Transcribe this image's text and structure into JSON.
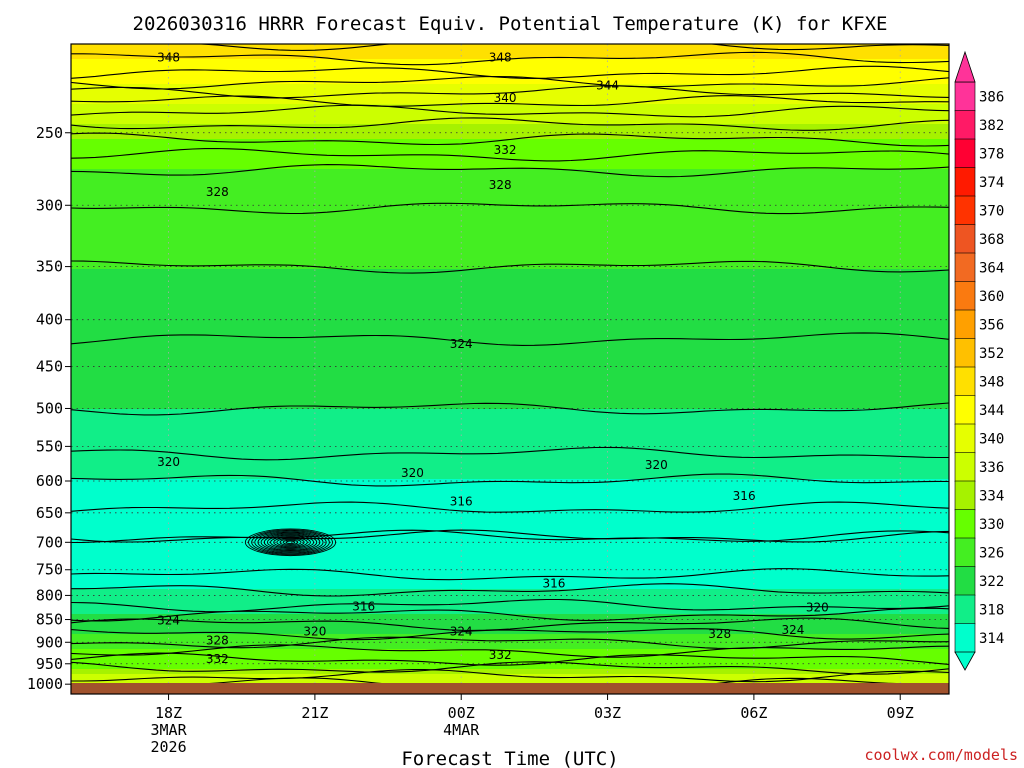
{
  "chart_data": {
    "type": "heatmap",
    "title": "2026030316 HRRR Forecast Equiv. Potential Temperature (K) for KFXE",
    "xlabel": "Forecast Time (UTC)",
    "ylabel": "",
    "x_ticks": [
      {
        "hour": 2,
        "lines": [
          "18Z",
          "3MAR",
          "2026"
        ]
      },
      {
        "hour": 5,
        "lines": [
          "21Z"
        ]
      },
      {
        "hour": 8,
        "lines": [
          "00Z",
          "4MAR"
        ]
      },
      {
        "hour": 11,
        "lines": [
          "03Z"
        ]
      },
      {
        "hour": 14,
        "lines": [
          "06Z"
        ]
      },
      {
        "hour": 17,
        "lines": [
          "09Z"
        ]
      }
    ],
    "xlim_hours": [
      0,
      18
    ],
    "y_scale": "log",
    "y_ticks": [
      250,
      300,
      350,
      400,
      450,
      500,
      550,
      600,
      650,
      700,
      750,
      800,
      850,
      900,
      950,
      1000
    ],
    "ylim_hPa": [
      200,
      1025
    ],
    "colorbar": {
      "levels": [
        386,
        382,
        378,
        374,
        370,
        368,
        364,
        360,
        356,
        352,
        348,
        344,
        340,
        336,
        334,
        330,
        326,
        322,
        318,
        314
      ],
      "colors": [
        "#ff3399",
        "#ff1a66",
        "#ff0033",
        "#ff1a00",
        "#ff3300",
        "#ee5522",
        "#f26a22",
        "#fa7a10",
        "#ffa000",
        "#ffc000",
        "#ffe000",
        "#ffff00",
        "#e6ff00",
        "#ccff00",
        "#a6f200",
        "#66ff00",
        "#44ee22",
        "#22dd44",
        "#11ee88",
        "#00ffcc"
      ]
    },
    "profiles": [
      {
        "p": 200,
        "theta": 350
      },
      {
        "p": 215,
        "theta": 346
      },
      {
        "p": 240,
        "theta": 337
      },
      {
        "p": 280,
        "theta": 329
      },
      {
        "p": 350,
        "theta": 326
      },
      {
        "p": 420,
        "theta": 324
      },
      {
        "p": 500,
        "theta": 322
      },
      {
        "p": 560,
        "theta": 320
      },
      {
        "p": 620,
        "theta": 317
      },
      {
        "p": 690,
        "theta": 314
      },
      {
        "p": 760,
        "theta": 316
      },
      {
        "p": 820,
        "theta": 320
      },
      {
        "p": 880,
        "theta": 326
      },
      {
        "p": 940,
        "theta": 332
      },
      {
        "p": 1000,
        "theta": 338
      }
    ],
    "contour_labels": [
      {
        "hour": 2.0,
        "p": 207,
        "text": "348"
      },
      {
        "hour": 8.8,
        "p": 207,
        "text": "348"
      },
      {
        "hour": 11.0,
        "p": 222,
        "text": "344"
      },
      {
        "hour": 8.9,
        "p": 229,
        "text": "340"
      },
      {
        "hour": 8.9,
        "p": 261,
        "text": "332"
      },
      {
        "hour": 8.8,
        "p": 285,
        "text": "328"
      },
      {
        "hour": 3.0,
        "p": 290,
        "text": "328"
      },
      {
        "hour": 8.0,
        "p": 425,
        "text": "324"
      },
      {
        "hour": 2.0,
        "p": 572,
        "text": "320"
      },
      {
        "hour": 7.0,
        "p": 588,
        "text": "320"
      },
      {
        "hour": 12.0,
        "p": 576,
        "text": "320"
      },
      {
        "hour": 8.0,
        "p": 632,
        "text": "316"
      },
      {
        "hour": 13.8,
        "p": 623,
        "text": "316"
      },
      {
        "hour": 9.9,
        "p": 776,
        "text": "316"
      },
      {
        "hour": 6.0,
        "p": 823,
        "text": "316"
      },
      {
        "hour": 2.0,
        "p": 852,
        "text": "324"
      },
      {
        "hour": 15.3,
        "p": 825,
        "text": "320"
      },
      {
        "hour": 5.0,
        "p": 876,
        "text": "320"
      },
      {
        "hour": 8.0,
        "p": 876,
        "text": "324"
      },
      {
        "hour": 13.3,
        "p": 881,
        "text": "328"
      },
      {
        "hour": 14.8,
        "p": 873,
        "text": "324"
      },
      {
        "hour": 3.0,
        "p": 896,
        "text": "328"
      },
      {
        "hour": 3.0,
        "p": 939,
        "text": "332"
      },
      {
        "hour": 8.8,
        "p": 929,
        "text": "332"
      }
    ],
    "grid": true,
    "legend": "none"
  },
  "credit": "coolwx.com/models"
}
